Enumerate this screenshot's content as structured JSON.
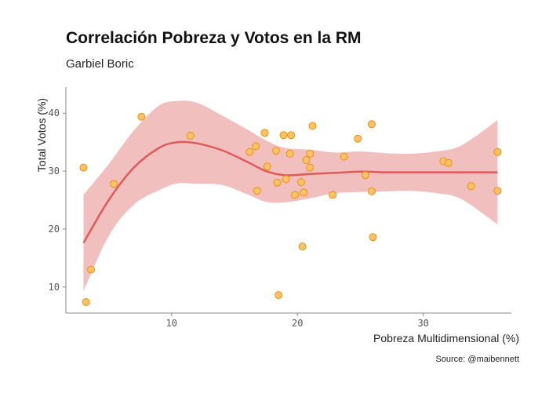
{
  "chart_data": {
    "type": "scatter",
    "title": "Correlación Pobreza y Votos en la RM",
    "subtitle": "Garbiel Boric",
    "xlabel": "Pobreza Multidimensional (%)",
    "ylabel": "Total Votos (%)",
    "caption": "Source: @maibennett",
    "xlim": [
      1.6,
      37
    ],
    "ylim": [
      5.5,
      44.5
    ],
    "x_ticks": [
      10,
      20,
      30
    ],
    "y_ticks": [
      10,
      20,
      30,
      40
    ],
    "grid": false,
    "points": [
      {
        "x": 3.0,
        "y": 30.6
      },
      {
        "x": 3.2,
        "y": 7.4
      },
      {
        "x": 3.6,
        "y": 13.0
      },
      {
        "x": 5.4,
        "y": 27.8
      },
      {
        "x": 7.6,
        "y": 39.4
      },
      {
        "x": 11.5,
        "y": 36.1
      },
      {
        "x": 16.2,
        "y": 33.3
      },
      {
        "x": 16.7,
        "y": 34.3
      },
      {
        "x": 16.8,
        "y": 26.6
      },
      {
        "x": 17.4,
        "y": 36.6
      },
      {
        "x": 17.6,
        "y": 30.8
      },
      {
        "x": 18.3,
        "y": 33.5
      },
      {
        "x": 18.4,
        "y": 28.0
      },
      {
        "x": 18.5,
        "y": 8.6
      },
      {
        "x": 18.9,
        "y": 36.2
      },
      {
        "x": 19.1,
        "y": 28.6
      },
      {
        "x": 19.4,
        "y": 33.0
      },
      {
        "x": 19.5,
        "y": 36.2
      },
      {
        "x": 19.8,
        "y": 25.9
      },
      {
        "x": 20.3,
        "y": 28.1
      },
      {
        "x": 20.4,
        "y": 17.0
      },
      {
        "x": 20.5,
        "y": 26.3
      },
      {
        "x": 20.7,
        "y": 31.9
      },
      {
        "x": 21.0,
        "y": 30.6
      },
      {
        "x": 21.0,
        "y": 33.0
      },
      {
        "x": 21.2,
        "y": 37.8
      },
      {
        "x": 22.8,
        "y": 25.9
      },
      {
        "x": 23.7,
        "y": 32.5
      },
      {
        "x": 24.8,
        "y": 35.6
      },
      {
        "x": 25.4,
        "y": 29.3
      },
      {
        "x": 25.9,
        "y": 38.1
      },
      {
        "x": 25.9,
        "y": 26.5
      },
      {
        "x": 26.0,
        "y": 18.6
      },
      {
        "x": 31.6,
        "y": 31.7
      },
      {
        "x": 32.0,
        "y": 31.4
      },
      {
        "x": 33.8,
        "y": 27.4
      },
      {
        "x": 35.9,
        "y": 33.3
      },
      {
        "x": 35.9,
        "y": 26.6
      }
    ],
    "smooth": {
      "method": "loess",
      "x": [
        3.0,
        5.0,
        7.0,
        9.0,
        10.5,
        12.0,
        14.0,
        16.0,
        17.5,
        19.0,
        21.0,
        23.0,
        25.0,
        27.0,
        29.0,
        31.0,
        33.0,
        35.9
      ],
      "y": [
        17.6,
        25.0,
        30.6,
        34.0,
        35.0,
        34.8,
        33.6,
        31.6,
        30.0,
        29.3,
        29.5,
        29.7,
        29.9,
        29.8,
        29.8,
        29.8,
        29.8,
        29.8
      ],
      "upper": [
        25.9,
        31.2,
        37.0,
        41.3,
        42.1,
        41.8,
        39.6,
        37.2,
        35.3,
        34.0,
        33.7,
        33.2,
        33.4,
        33.1,
        33.0,
        33.4,
        34.4,
        38.8
      ],
      "lower": [
        9.3,
        18.8,
        24.2,
        26.7,
        27.9,
        27.8,
        27.6,
        26.0,
        24.7,
        24.6,
        25.3,
        26.2,
        26.4,
        26.5,
        26.6,
        26.2,
        25.2,
        20.8
      ]
    }
  }
}
